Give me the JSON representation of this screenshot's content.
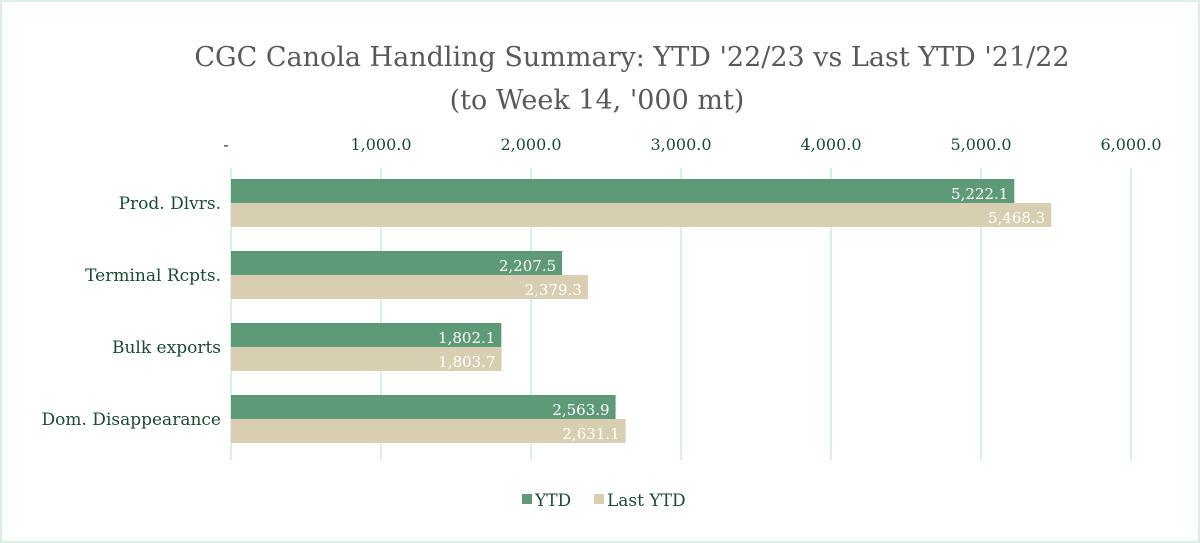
{
  "chart_data": {
    "type": "bar",
    "orientation": "horizontal",
    "title": "CGC Canola Handling Summary: YTD '22/23 vs Last YTD '21/22",
    "subtitle": "(to Week 14, '000 mt)",
    "categories": [
      "Prod. Dlvrs.",
      "Terminal Rcpts.",
      "Bulk exports",
      "Dom. Disappearance"
    ],
    "series": [
      {
        "name": "YTD",
        "values": [
          5222.1,
          2207.5,
          1802.1,
          2563.9
        ],
        "labels": [
          "5,222.1",
          "2,207.5",
          "1,802.1",
          "2,563.9"
        ],
        "color": "#5e9a78"
      },
      {
        "name": "Last YTD",
        "values": [
          5468.3,
          2379.3,
          1803.7,
          2631.1
        ],
        "labels": [
          "5,468.3",
          "2,379.3",
          "1,803.7",
          "2,631.1"
        ],
        "color": "#d8cfb2"
      }
    ],
    "xlim": [
      0,
      6000
    ],
    "xticks": [
      0,
      1000,
      2000,
      3000,
      4000,
      5000,
      6000
    ],
    "xtick_labels": [
      "-",
      "1,000.0",
      "2,000.0",
      "3,000.0",
      "4,000.0",
      "5,000.0",
      "6,000.0"
    ],
    "xaxis_position": "top",
    "grid": true,
    "gridline_color": "#d6f2e4",
    "legend_position": "bottom",
    "data_labels": true,
    "xlabel": "",
    "ylabel": ""
  }
}
